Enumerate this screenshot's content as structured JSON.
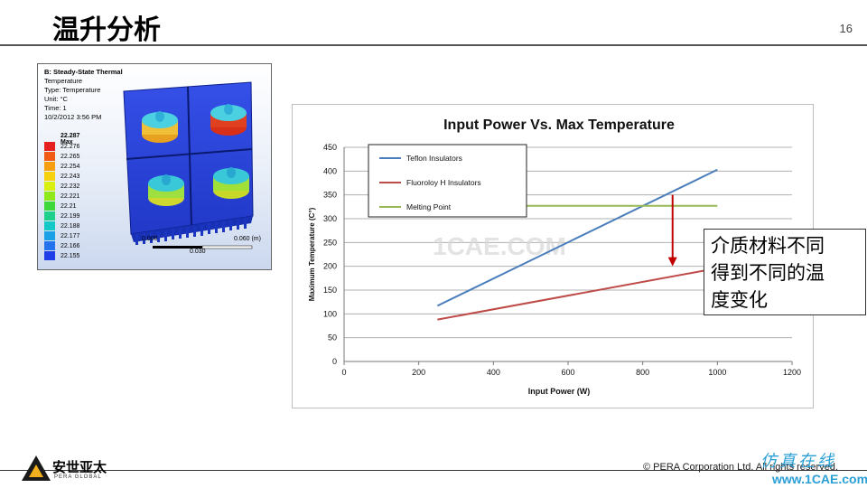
{
  "header": {
    "title": "温升分析",
    "page_number": "16"
  },
  "simulation": {
    "heading": "B: Steady-State Thermal",
    "lines": [
      "Temperature",
      "Type: Temperature",
      "Unit: °C",
      "Time: 1",
      "10/2/2012 3:56 PM"
    ],
    "legend_max": "22.287 Max",
    "legend_values": [
      "22.276",
      "22.265",
      "22.254",
      "22.243",
      "22.232",
      "22.221",
      "22.21",
      "22.199",
      "22.188",
      "22.177",
      "22.166",
      "22.155"
    ],
    "legend_colors": [
      "#e52020",
      "#f05a14",
      "#f79e10",
      "#f7d10c",
      "#d8ef10",
      "#8ee81a",
      "#3fd83a",
      "#1ed08c",
      "#14c8c8",
      "#1aa0e6",
      "#2472ee",
      "#1e3fe8"
    ],
    "scale_labels": [
      "0.000",
      "0.030",
      "0.060 (m)"
    ]
  },
  "chart_data": {
    "type": "line",
    "title": "Input Power Vs. Max Temperature",
    "xlabel": "Input Power (W)",
    "ylabel": "Maximum Temperature (C°)",
    "xlim": [
      0,
      1200
    ],
    "ylim": [
      0,
      450
    ],
    "x_ticks": [
      "0",
      "200",
      "400",
      "600",
      "800",
      "1000",
      "1200"
    ],
    "y_ticks": [
      "0",
      "50",
      "100",
      "150",
      "200",
      "250",
      "300",
      "350",
      "400",
      "450"
    ],
    "grid": true,
    "legend_position": "top-left",
    "series": [
      {
        "name": "Teflon Insulators",
        "color": "#4a7ebb",
        "points": [
          [
            250,
            117
          ],
          [
            1000,
            403
          ]
        ]
      },
      {
        "name": "Fluoroloy H Insulators",
        "color": "#be4b48",
        "points": [
          [
            250,
            88
          ],
          [
            1000,
            196
          ]
        ]
      },
      {
        "name": "Melting Point",
        "color": "#98b954",
        "points": [
          [
            250,
            327
          ],
          [
            1000,
            327
          ]
        ]
      }
    ],
    "annotation_arrow": {
      "x": 880,
      "y_from": 350,
      "y_to": 200,
      "color": "#c00000"
    }
  },
  "watermark": "1CAE.COM",
  "callout": {
    "lines": [
      "介质材料不同",
      "得到不同的温",
      "度变化"
    ]
  },
  "footer": {
    "logo_text": "安世亚太",
    "logo_sub": "PERA GLOBAL",
    "copyright": "© PERA Corporation Ltd. All rights reserved.",
    "site_mark": "仿真在线",
    "site_url": "www.1CAE.com"
  }
}
